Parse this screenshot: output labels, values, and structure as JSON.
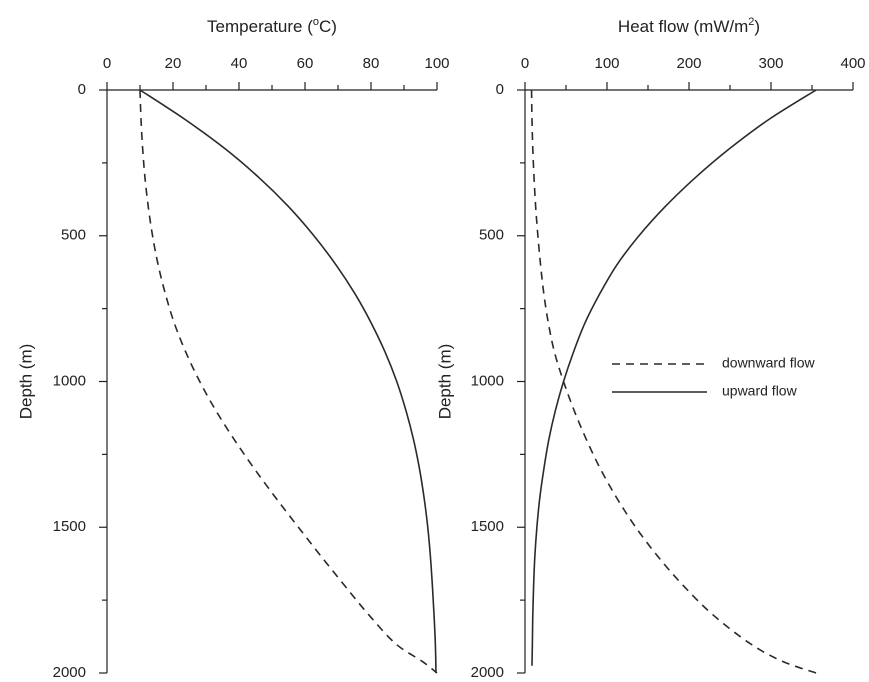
{
  "chart_data": [
    {
      "type": "line",
      "id": "temperature",
      "xlabel": "Temperature (°C)",
      "xlabel_parts": [
        "Temperature (",
        "o",
        "C)"
      ],
      "ylabel": "Depth (m)",
      "x_axis_position": "top",
      "y_inverted": true,
      "xlim": [
        0,
        100
      ],
      "ylim": [
        0,
        2000
      ],
      "x_ticks": [
        0,
        20,
        40,
        60,
        80,
        100
      ],
      "x_minor_step": 10,
      "y_ticks": [
        0,
        500,
        1000,
        1500,
        2000
      ],
      "y_minor_step": 250,
      "grid": false,
      "series": [
        {
          "name": "downward flow",
          "style": "dashed",
          "points": [
            [
              10,
              0
            ],
            [
              10.3,
              100
            ],
            [
              10.8,
              200
            ],
            [
              11.5,
              300
            ],
            [
              12.5,
              400
            ],
            [
              13.8,
              500
            ],
            [
              15.5,
              600
            ],
            [
              17.7,
              700
            ],
            [
              20.4,
              800
            ],
            [
              23.9,
              900
            ],
            [
              28.1,
              1000
            ],
            [
              33.0,
              1100
            ],
            [
              38.6,
              1200
            ],
            [
              44.7,
              1300
            ],
            [
              51.2,
              1400
            ],
            [
              58.0,
              1500
            ],
            [
              64.9,
              1600
            ],
            [
              72.0,
              1700
            ],
            [
              79.3,
              1800
            ],
            [
              87.5,
              1900
            ],
            [
              95.5,
              1960
            ],
            [
              100,
              2000
            ]
          ]
        },
        {
          "name": "upward flow",
          "style": "solid",
          "points": [
            [
              10,
              0
            ],
            [
              23.5,
              100
            ],
            [
              35.6,
              200
            ],
            [
              46.0,
              300
            ],
            [
              55.0,
              400
            ],
            [
              62.7,
              500
            ],
            [
              69.4,
              600
            ],
            [
              75.2,
              700
            ],
            [
              80.1,
              800
            ],
            [
              84.3,
              900
            ],
            [
              87.8,
              1000
            ],
            [
              90.6,
              1100
            ],
            [
              92.9,
              1200
            ],
            [
              94.7,
              1300
            ],
            [
              96.1,
              1400
            ],
            [
              97.2,
              1500
            ],
            [
              98.0,
              1600
            ],
            [
              98.6,
              1700
            ],
            [
              99.1,
              1800
            ],
            [
              99.5,
              1900
            ],
            [
              99.7,
              2000
            ]
          ]
        }
      ]
    },
    {
      "type": "line",
      "id": "heat-flow",
      "xlabel": "Heat flow (mW/m²)",
      "xlabel_parts": [
        "Heat flow (mW/m",
        "2",
        ")"
      ],
      "ylabel": "Depth (m)",
      "x_axis_position": "top",
      "y_inverted": true,
      "xlim": [
        0,
        400
      ],
      "ylim": [
        0,
        2000
      ],
      "x_ticks": [
        0,
        100,
        200,
        300,
        400
      ],
      "x_minor_step": 50,
      "y_ticks": [
        0,
        500,
        1000,
        1500,
        2000
      ],
      "y_minor_step": 250,
      "grid": false,
      "legend": {
        "placement": "center-right",
        "entries": [
          "downward flow",
          "upward flow"
        ]
      },
      "series": [
        {
          "name": "downward flow",
          "style": "dashed",
          "points": [
            [
              8,
              0
            ],
            [
              8.5,
              100
            ],
            [
              9.5,
              200
            ],
            [
              11,
              300
            ],
            [
              13,
              400
            ],
            [
              15.7,
              500
            ],
            [
              19,
              600
            ],
            [
              23,
              700
            ],
            [
              28.5,
              800
            ],
            [
              36,
              900
            ],
            [
              47,
              1000
            ],
            [
              60,
              1100
            ],
            [
              75,
              1200
            ],
            [
              92,
              1300
            ],
            [
              112,
              1400
            ],
            [
              135,
              1500
            ],
            [
              162,
              1600
            ],
            [
              193,
              1700
            ],
            [
              229,
              1800
            ],
            [
              275,
              1900
            ],
            [
              314,
              1960
            ],
            [
              355,
              2000
            ]
          ]
        },
        {
          "name": "upward flow",
          "style": "solid",
          "points": [
            [
              355,
              0
            ],
            [
              298,
              100
            ],
            [
              250,
              200
            ],
            [
              208,
              300
            ],
            [
              171,
              400
            ],
            [
              139,
              500
            ],
            [
              112,
              600
            ],
            [
              91,
              700
            ],
            [
              73,
              800
            ],
            [
              59,
              900
            ],
            [
              47,
              1000
            ],
            [
              37,
              1100
            ],
            [
              29,
              1200
            ],
            [
              23,
              1300
            ],
            [
              18,
              1400
            ],
            [
              14.5,
              1500
            ],
            [
              12,
              1600
            ],
            [
              10.5,
              1700
            ],
            [
              9.5,
              1800
            ],
            [
              9,
              1900
            ],
            [
              8.5,
              1975
            ]
          ]
        }
      ]
    }
  ]
}
